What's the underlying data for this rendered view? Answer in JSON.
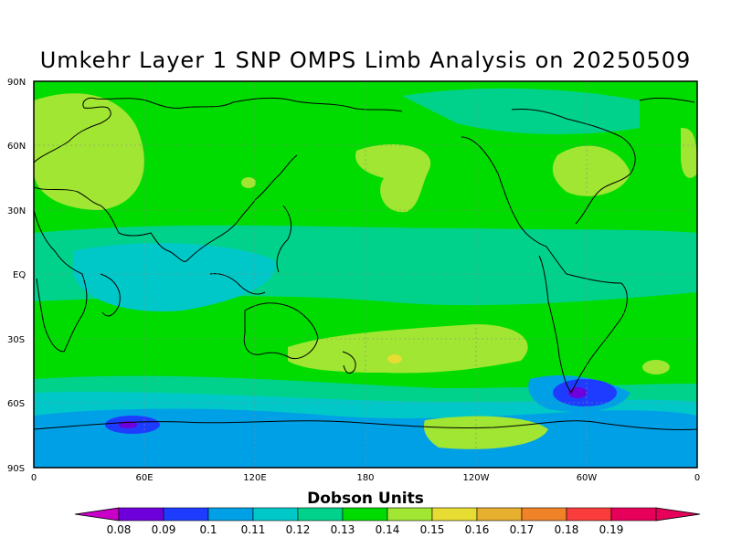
{
  "title": "Umkehr Layer 1 SNP OMPS Limb Analysis on 20250509",
  "lat_ticks": [
    "90N",
    "60N",
    "30N",
    "EQ",
    "30S",
    "60S",
    "90S"
  ],
  "lon_ticks": [
    "0",
    "60E",
    "120E",
    "180",
    "120W",
    "60W",
    "0"
  ],
  "colorbar": {
    "title": "Dobson Units",
    "labels": [
      "0.08",
      "0.09",
      "0.1",
      "0.11",
      "0.12",
      "0.13",
      "0.14",
      "0.15",
      "0.16",
      "0.17",
      "0.18",
      "0.19"
    ],
    "colors": [
      "#a000c8",
      "#6e00dc",
      "#1e3cff",
      "#00a0e6",
      "#00c8c8",
      "#00d28c",
      "#00dc00",
      "#a0e632",
      "#e6dc32",
      "#e6af2d",
      "#f08228",
      "#fa3c3c",
      "#e6005a",
      "#c8008c"
    ],
    "low_arrow_color": "#c800c8",
    "high_arrow_color": "#e6005a"
  },
  "map_colors": {
    "background": "#00dc00",
    "level_012": "#00c8c8",
    "level_013": "#00d28c",
    "level_015": "#a0e632",
    "level_016": "#e6dc32",
    "level_011": "#00a0e6",
    "level_010": "#1e3cff",
    "level_009": "#6e00dc"
  }
}
